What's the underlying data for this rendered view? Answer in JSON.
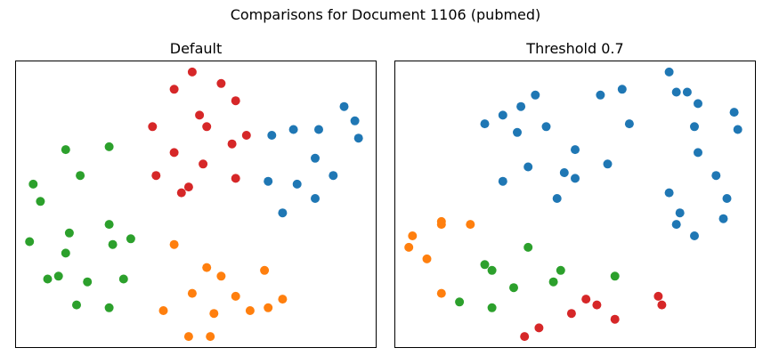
{
  "figure": {
    "suptitle": "Comparisons for Document 1106 (pubmed)"
  },
  "colors": {
    "blue": "#1f77b4",
    "orange": "#ff7f0e",
    "green": "#2ca02c",
    "red": "#d62728"
  },
  "chart_data": [
    {
      "type": "scatter",
      "title": "Default",
      "xlabel": "",
      "ylabel": "",
      "ticks": "none",
      "xlim": [
        0,
        100
      ],
      "ylim": [
        0,
        100
      ],
      "grid": false,
      "points": [
        {
          "x": 49,
          "y": 96,
          "cluster": "red"
        },
        {
          "x": 44,
          "y": 90,
          "cluster": "red"
        },
        {
          "x": 57,
          "y": 92,
          "cluster": "red"
        },
        {
          "x": 61,
          "y": 86,
          "cluster": "red"
        },
        {
          "x": 51,
          "y": 81,
          "cluster": "red"
        },
        {
          "x": 38,
          "y": 77,
          "cluster": "red"
        },
        {
          "x": 53,
          "y": 77,
          "cluster": "red"
        },
        {
          "x": 64,
          "y": 74,
          "cluster": "red"
        },
        {
          "x": 60,
          "y": 71,
          "cluster": "red"
        },
        {
          "x": 44,
          "y": 68,
          "cluster": "red"
        },
        {
          "x": 52,
          "y": 64,
          "cluster": "red"
        },
        {
          "x": 39,
          "y": 60,
          "cluster": "red"
        },
        {
          "x": 61,
          "y": 59,
          "cluster": "red"
        },
        {
          "x": 48,
          "y": 56,
          "cluster": "red"
        },
        {
          "x": 46,
          "y": 54,
          "cluster": "red"
        },
        {
          "x": 91,
          "y": 84,
          "cluster": "blue"
        },
        {
          "x": 94,
          "y": 79,
          "cluster": "blue"
        },
        {
          "x": 95,
          "y": 73,
          "cluster": "blue"
        },
        {
          "x": 77,
          "y": 76,
          "cluster": "blue"
        },
        {
          "x": 84,
          "y": 76,
          "cluster": "blue"
        },
        {
          "x": 71,
          "y": 74,
          "cluster": "blue"
        },
        {
          "x": 83,
          "y": 66,
          "cluster": "blue"
        },
        {
          "x": 88,
          "y": 60,
          "cluster": "blue"
        },
        {
          "x": 70,
          "y": 58,
          "cluster": "blue"
        },
        {
          "x": 78,
          "y": 57,
          "cluster": "blue"
        },
        {
          "x": 83,
          "y": 52,
          "cluster": "blue"
        },
        {
          "x": 74,
          "y": 47,
          "cluster": "blue"
        },
        {
          "x": 26,
          "y": 70,
          "cluster": "green"
        },
        {
          "x": 14,
          "y": 69,
          "cluster": "green"
        },
        {
          "x": 18,
          "y": 60,
          "cluster": "green"
        },
        {
          "x": 5,
          "y": 57,
          "cluster": "green"
        },
        {
          "x": 7,
          "y": 51,
          "cluster": "green"
        },
        {
          "x": 26,
          "y": 43,
          "cluster": "green"
        },
        {
          "x": 15,
          "y": 40,
          "cluster": "green"
        },
        {
          "x": 32,
          "y": 38,
          "cluster": "green"
        },
        {
          "x": 4,
          "y": 37,
          "cluster": "green"
        },
        {
          "x": 27,
          "y": 36,
          "cluster": "green"
        },
        {
          "x": 14,
          "y": 33,
          "cluster": "green"
        },
        {
          "x": 9,
          "y": 24,
          "cluster": "green"
        },
        {
          "x": 12,
          "y": 25,
          "cluster": "green"
        },
        {
          "x": 20,
          "y": 23,
          "cluster": "green"
        },
        {
          "x": 30,
          "y": 24,
          "cluster": "green"
        },
        {
          "x": 17,
          "y": 15,
          "cluster": "green"
        },
        {
          "x": 26,
          "y": 14,
          "cluster": "green"
        },
        {
          "x": 44,
          "y": 36,
          "cluster": "orange"
        },
        {
          "x": 53,
          "y": 28,
          "cluster": "orange"
        },
        {
          "x": 69,
          "y": 27,
          "cluster": "orange"
        },
        {
          "x": 57,
          "y": 25,
          "cluster": "orange"
        },
        {
          "x": 49,
          "y": 19,
          "cluster": "orange"
        },
        {
          "x": 61,
          "y": 18,
          "cluster": "orange"
        },
        {
          "x": 74,
          "y": 17,
          "cluster": "orange"
        },
        {
          "x": 41,
          "y": 13,
          "cluster": "orange"
        },
        {
          "x": 55,
          "y": 12,
          "cluster": "orange"
        },
        {
          "x": 65,
          "y": 13,
          "cluster": "orange"
        },
        {
          "x": 70,
          "y": 14,
          "cluster": "orange"
        },
        {
          "x": 48,
          "y": 4,
          "cluster": "orange"
        },
        {
          "x": 54,
          "y": 4,
          "cluster": "orange"
        }
      ]
    },
    {
      "type": "scatter",
      "title": "Threshold 0.7",
      "xlabel": "",
      "ylabel": "",
      "ticks": "none",
      "xlim": [
        0,
        100
      ],
      "ylim": [
        0,
        100
      ],
      "grid": false,
      "points": [
        {
          "x": 76,
          "y": 96,
          "cluster": "blue"
        },
        {
          "x": 78,
          "y": 89,
          "cluster": "blue"
        },
        {
          "x": 81,
          "y": 89,
          "cluster": "blue"
        },
        {
          "x": 63,
          "y": 90,
          "cluster": "blue"
        },
        {
          "x": 57,
          "y": 88,
          "cluster": "blue"
        },
        {
          "x": 39,
          "y": 88,
          "cluster": "blue"
        },
        {
          "x": 35,
          "y": 84,
          "cluster": "blue"
        },
        {
          "x": 30,
          "y": 81,
          "cluster": "blue"
        },
        {
          "x": 25,
          "y": 78,
          "cluster": "blue"
        },
        {
          "x": 34,
          "y": 75,
          "cluster": "blue"
        },
        {
          "x": 42,
          "y": 77,
          "cluster": "blue"
        },
        {
          "x": 65,
          "y": 78,
          "cluster": "blue"
        },
        {
          "x": 84,
          "y": 85,
          "cluster": "blue"
        },
        {
          "x": 94,
          "y": 82,
          "cluster": "blue"
        },
        {
          "x": 83,
          "y": 77,
          "cluster": "blue"
        },
        {
          "x": 95,
          "y": 76,
          "cluster": "blue"
        },
        {
          "x": 50,
          "y": 69,
          "cluster": "blue"
        },
        {
          "x": 84,
          "y": 68,
          "cluster": "blue"
        },
        {
          "x": 37,
          "y": 63,
          "cluster": "blue"
        },
        {
          "x": 59,
          "y": 64,
          "cluster": "blue"
        },
        {
          "x": 47,
          "y": 61,
          "cluster": "blue"
        },
        {
          "x": 50,
          "y": 59,
          "cluster": "blue"
        },
        {
          "x": 30,
          "y": 58,
          "cluster": "blue"
        },
        {
          "x": 89,
          "y": 60,
          "cluster": "blue"
        },
        {
          "x": 45,
          "y": 52,
          "cluster": "blue"
        },
        {
          "x": 76,
          "y": 54,
          "cluster": "blue"
        },
        {
          "x": 92,
          "y": 52,
          "cluster": "blue"
        },
        {
          "x": 79,
          "y": 47,
          "cluster": "blue"
        },
        {
          "x": 91,
          "y": 45,
          "cluster": "blue"
        },
        {
          "x": 78,
          "y": 43,
          "cluster": "blue"
        },
        {
          "x": 83,
          "y": 39,
          "cluster": "blue"
        },
        {
          "x": 13,
          "y": 44,
          "cluster": "orange"
        },
        {
          "x": 13,
          "y": 43,
          "cluster": "orange"
        },
        {
          "x": 21,
          "y": 43,
          "cluster": "orange"
        },
        {
          "x": 5,
          "y": 39,
          "cluster": "orange"
        },
        {
          "x": 4,
          "y": 35,
          "cluster": "orange"
        },
        {
          "x": 9,
          "y": 31,
          "cluster": "orange"
        },
        {
          "x": 13,
          "y": 19,
          "cluster": "orange"
        },
        {
          "x": 37,
          "y": 35,
          "cluster": "green"
        },
        {
          "x": 25,
          "y": 29,
          "cluster": "green"
        },
        {
          "x": 27,
          "y": 27,
          "cluster": "green"
        },
        {
          "x": 46,
          "y": 27,
          "cluster": "green"
        },
        {
          "x": 61,
          "y": 25,
          "cluster": "green"
        },
        {
          "x": 44,
          "y": 23,
          "cluster": "green"
        },
        {
          "x": 33,
          "y": 21,
          "cluster": "green"
        },
        {
          "x": 18,
          "y": 16,
          "cluster": "green"
        },
        {
          "x": 27,
          "y": 14,
          "cluster": "green"
        },
        {
          "x": 53,
          "y": 17,
          "cluster": "red"
        },
        {
          "x": 56,
          "y": 15,
          "cluster": "red"
        },
        {
          "x": 49,
          "y": 12,
          "cluster": "red"
        },
        {
          "x": 61,
          "y": 10,
          "cluster": "red"
        },
        {
          "x": 73,
          "y": 18,
          "cluster": "red"
        },
        {
          "x": 74,
          "y": 15,
          "cluster": "red"
        },
        {
          "x": 40,
          "y": 7,
          "cluster": "red"
        },
        {
          "x": 36,
          "y": 4,
          "cluster": "red"
        }
      ]
    }
  ]
}
